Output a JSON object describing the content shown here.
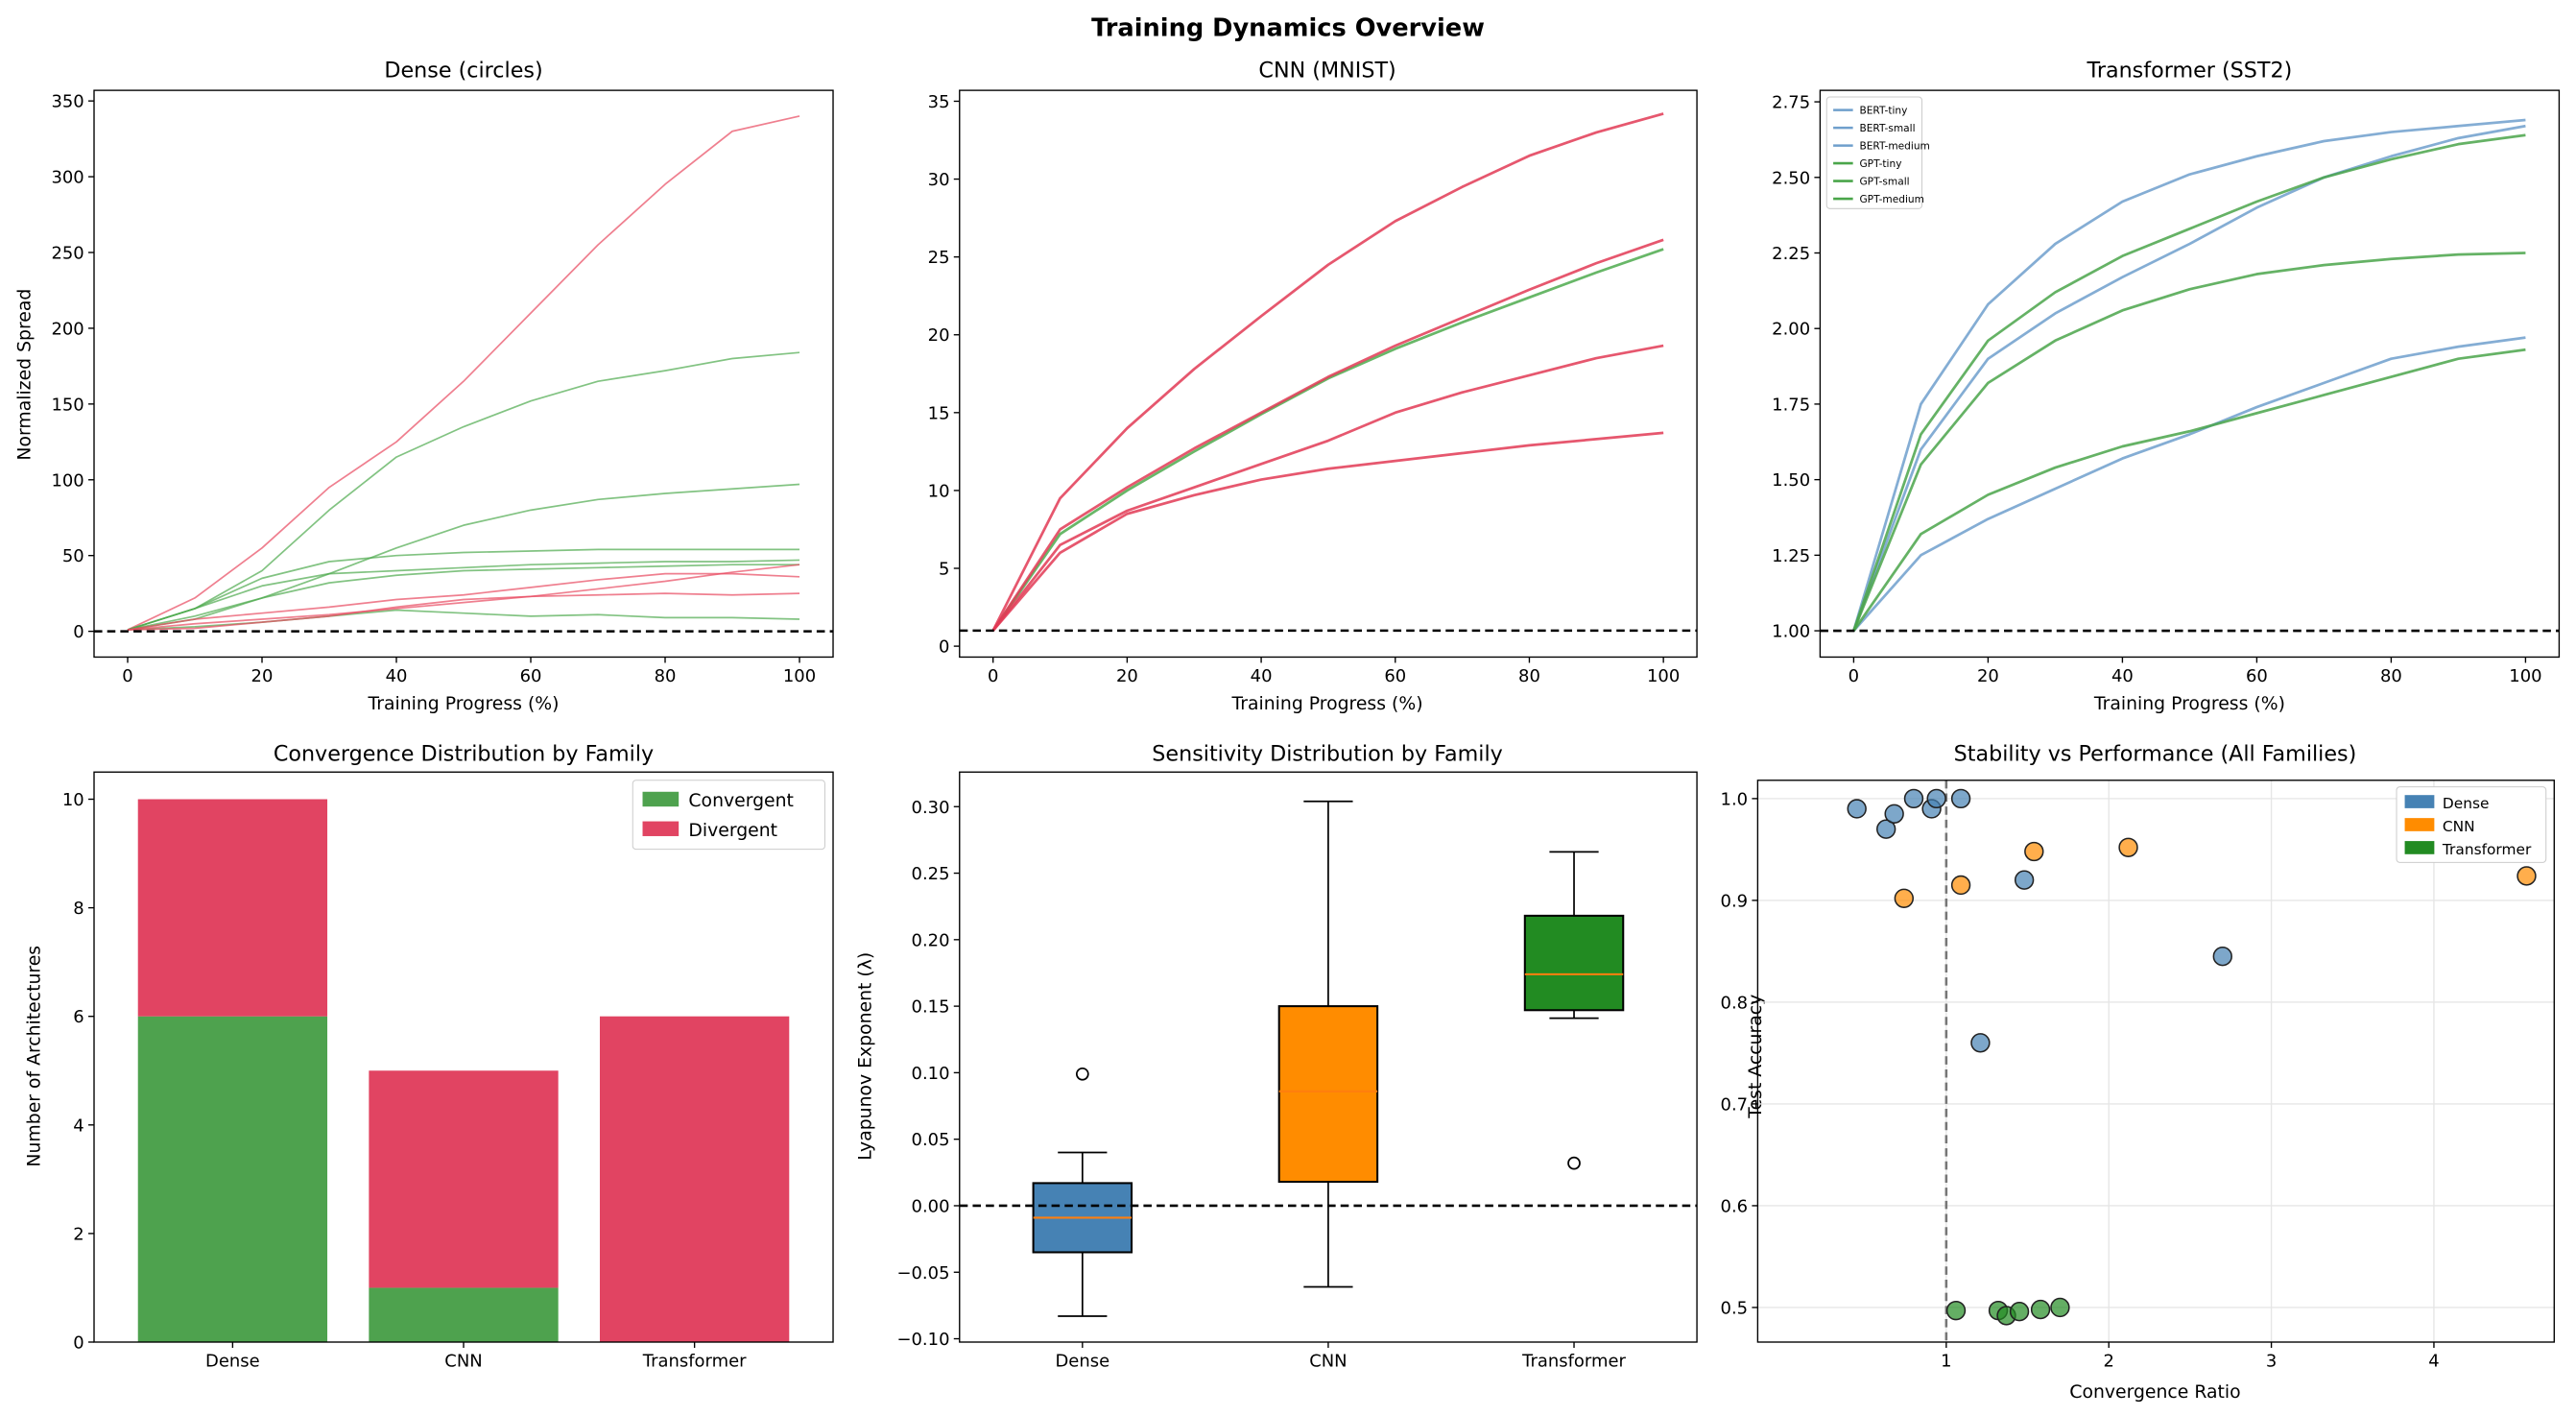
{
  "figure": {
    "title": "Training Dynamics Overview"
  },
  "chart_data": [
    {
      "type": "line",
      "title": "Dense (circles)",
      "xlabel": "Training Progress (%)",
      "ylabel": "Normalized Spread",
      "xlim": [
        -5,
        105
      ],
      "ylim": [
        -17,
        357
      ],
      "xticks": [
        0,
        20,
        40,
        60,
        80,
        100
      ],
      "xticklabels": [
        "0",
        "20",
        "40",
        "60",
        "80",
        "100"
      ],
      "yticks": [
        0,
        50,
        100,
        150,
        200,
        250,
        300,
        350
      ],
      "yticklabels": [
        "0",
        "50",
        "100",
        "150",
        "200",
        "250",
        "300",
        "350"
      ],
      "reference_line": {
        "y": 0,
        "style": "dashed",
        "color": "#000000"
      },
      "grid": false,
      "x": [
        0,
        10,
        20,
        30,
        40,
        50,
        60,
        70,
        80,
        90,
        100
      ],
      "series": [
        {
          "color": "#e8485f",
          "values": [
            1,
            22,
            55,
            95,
            125,
            165,
            210,
            255,
            295,
            330,
            340
          ]
        },
        {
          "color": "#4daa4d",
          "values": [
            1,
            15,
            40,
            80,
            115,
            135,
            152,
            165,
            172,
            180,
            184
          ]
        },
        {
          "color": "#4daa4d",
          "values": [
            1,
            8,
            22,
            38,
            55,
            70,
            80,
            87,
            91,
            94,
            97
          ]
        },
        {
          "color": "#4daa4d",
          "values": [
            1,
            15,
            35,
            46,
            50,
            52,
            53,
            54,
            54,
            54,
            54
          ]
        },
        {
          "color": "#4daa4d",
          "values": [
            1,
            15,
            30,
            38,
            40,
            42,
            44,
            45,
            46,
            46,
            47
          ]
        },
        {
          "color": "#4daa4d",
          "values": [
            1,
            10,
            22,
            32,
            37,
            40,
            41,
            42,
            43,
            44,
            44
          ]
        },
        {
          "color": "#4daa4d",
          "values": [
            1,
            3,
            6,
            10,
            14,
            12,
            10,
            11,
            9,
            9,
            8
          ]
        },
        {
          "color": "#e8485f",
          "values": [
            1,
            5,
            8,
            11,
            15,
            19,
            23,
            28,
            33,
            39,
            44
          ]
        },
        {
          "color": "#e8485f",
          "values": [
            1,
            8,
            12,
            16,
            21,
            24,
            29,
            34,
            38,
            38,
            36
          ]
        },
        {
          "color": "#e8485f",
          "values": [
            1,
            2,
            6,
            10,
            16,
            21,
            23,
            24,
            25,
            24,
            25
          ]
        }
      ]
    },
    {
      "type": "line",
      "title": "CNN (MNIST)",
      "xlabel": "Training Progress (%)",
      "ylabel": "",
      "xlim": [
        -5,
        105
      ],
      "ylim": [
        -0.7,
        35.7
      ],
      "xticks": [
        0,
        20,
        40,
        60,
        80,
        100
      ],
      "xticklabels": [
        "0",
        "20",
        "40",
        "60",
        "80",
        "100"
      ],
      "yticks": [
        0,
        5,
        10,
        15,
        20,
        25,
        30,
        35
      ],
      "yticklabels": [
        "0",
        "5",
        "10",
        "15",
        "20",
        "25",
        "30",
        "35"
      ],
      "reference_line": {
        "y": 1,
        "style": "dashed",
        "color": "#000000"
      },
      "grid": false,
      "x": [
        0,
        10,
        20,
        30,
        40,
        50,
        60,
        70,
        80,
        90,
        100
      ],
      "series": [
        {
          "color": "#4daa4d",
          "values": [
            1,
            7.2,
            10,
            12.5,
            14.9,
            17.2,
            19.1,
            20.8,
            22.4,
            24,
            25.5
          ]
        },
        {
          "color": "#e23a55",
          "values": [
            1,
            9.5,
            14,
            17.8,
            21.2,
            24.5,
            27.3,
            29.5,
            31.5,
            33,
            34.2
          ]
        },
        {
          "color": "#e23a55",
          "values": [
            1,
            7.5,
            10.2,
            12.7,
            15,
            17.3,
            19.3,
            21.1,
            22.9,
            24.6,
            26.1
          ]
        },
        {
          "color": "#e23a55",
          "values": [
            1,
            6.5,
            8.7,
            10.2,
            11.7,
            13.2,
            15,
            16.3,
            17.4,
            18.5,
            19.3
          ]
        },
        {
          "color": "#e23a55",
          "values": [
            1,
            6,
            8.5,
            9.7,
            10.7,
            11.4,
            11.9,
            12.4,
            12.9,
            13.3,
            13.7
          ]
        }
      ]
    },
    {
      "type": "line",
      "title": "Transformer (SST2)",
      "xlabel": "Training Progress (%)",
      "ylabel": "",
      "xlim": [
        -5,
        105
      ],
      "ylim": [
        0.913,
        2.788
      ],
      "xticks": [
        0,
        20,
        40,
        60,
        80,
        100
      ],
      "xticklabels": [
        "0",
        "20",
        "40",
        "60",
        "80",
        "100"
      ],
      "yticks": [
        1,
        1.25,
        1.5,
        1.75,
        2,
        2.25,
        2.5,
        2.75
      ],
      "yticklabels": [
        "1.00",
        "1.25",
        "1.50",
        "1.75",
        "2.00",
        "2.25",
        "2.50",
        "2.75"
      ],
      "reference_line": {
        "y": 1,
        "style": "dashed",
        "color": "#000000"
      },
      "grid": false,
      "legend": "top-left",
      "x": [
        0,
        10,
        20,
        30,
        40,
        50,
        60,
        70,
        80,
        90,
        100
      ],
      "series": [
        {
          "name": "BERT-tiny",
          "color": "#6f9fcc",
          "values": [
            1,
            1.75,
            2.08,
            2.28,
            2.42,
            2.51,
            2.57,
            2.62,
            2.65,
            2.67,
            2.69
          ]
        },
        {
          "name": "BERT-small",
          "color": "#6f9fcc",
          "values": [
            1,
            1.6,
            1.9,
            2.05,
            2.17,
            2.28,
            2.4,
            2.5,
            2.57,
            2.63,
            2.67
          ]
        },
        {
          "name": "BERT-medium",
          "color": "#6f9fcc",
          "values": [
            1,
            1.25,
            1.37,
            1.47,
            1.57,
            1.65,
            1.74,
            1.82,
            1.9,
            1.94,
            1.97
          ]
        },
        {
          "name": "GPT-tiny",
          "color": "#4aa54a",
          "values": [
            1,
            1.65,
            1.96,
            2.12,
            2.24,
            2.33,
            2.42,
            2.5,
            2.56,
            2.61,
            2.64
          ]
        },
        {
          "name": "GPT-small",
          "color": "#4aa54a",
          "values": [
            1,
            1.55,
            1.82,
            1.96,
            2.06,
            2.13,
            2.18,
            2.21,
            2.23,
            2.245,
            2.25
          ]
        },
        {
          "name": "GPT-medium",
          "color": "#4aa54a",
          "values": [
            1,
            1.32,
            1.45,
            1.54,
            1.61,
            1.66,
            1.72,
            1.78,
            1.84,
            1.9,
            1.93
          ]
        }
      ]
    },
    {
      "type": "bar",
      "stacked": true,
      "title": "Convergence Distribution by Family",
      "xlabel": "",
      "ylabel": "Number of Architectures",
      "categories": [
        "Dense",
        "CNN",
        "Transformer"
      ],
      "ylim": [
        0,
        10.5
      ],
      "yticks": [
        0,
        2,
        4,
        6,
        8,
        10
      ],
      "yticklabels": [
        "0",
        "2",
        "4",
        "6",
        "8",
        "10"
      ],
      "legend": "top-right",
      "series": [
        {
          "name": "Convergent",
          "color": "#4ea24e",
          "values": [
            6,
            1,
            0
          ]
        },
        {
          "name": "Divergent",
          "color": "#e14462",
          "values": [
            4,
            4,
            6
          ]
        }
      ]
    },
    {
      "type": "box",
      "title": "Sensitivity Distribution by Family",
      "xlabel": "",
      "ylabel": "Lyapunov Exponent (λ)",
      "categories": [
        "Dense",
        "CNN",
        "Transformer"
      ],
      "ylim": [
        -0.1025,
        0.326
      ],
      "yticks": [
        -0.1,
        -0.05,
        0,
        0.05,
        0.1,
        0.15,
        0.2,
        0.25,
        0.3
      ],
      "yticklabels": [
        "−0.10",
        "−0.05",
        "0.00",
        "0.05",
        "0.10",
        "0.15",
        "0.20",
        "0.25",
        "0.30"
      ],
      "reference_line": {
        "y": 0,
        "style": "dashed",
        "color": "#000000"
      },
      "median_color": "#ff7f0e",
      "boxes": [
        {
          "color": "#4682b4",
          "whisker_low": -0.083,
          "q1": -0.035,
          "median": -0.009,
          "q3": 0.017,
          "whisker_high": 0.04,
          "outliers": [
            0.099
          ]
        },
        {
          "color": "#ff8c00",
          "whisker_low": -0.061,
          "q1": 0.018,
          "median": 0.086,
          "q3": 0.15,
          "whisker_high": 0.304,
          "outliers": []
        },
        {
          "color": "#228b22",
          "whisker_low": 0.141,
          "q1": 0.147,
          "median": 0.174,
          "q3": 0.218,
          "whisker_high": 0.266,
          "outliers": [
            0.032
          ]
        }
      ]
    },
    {
      "type": "scatter",
      "title": "Stability vs Performance (All Families)",
      "xlabel": "Convergence Ratio",
      "ylabel": "Test Accuracy",
      "xlim": [
        -0.16,
        4.74
      ],
      "ylim": [
        0.466,
        1.018
      ],
      "xticks": [
        1,
        2,
        3,
        4
      ],
      "xticklabels": [
        "1",
        "2",
        "3",
        "4"
      ],
      "yticks": [
        0.5,
        0.6,
        0.7,
        0.8,
        0.9,
        1.0
      ],
      "yticklabels": [
        "0.5",
        "0.6",
        "0.7",
        "0.8",
        "0.9",
        "1.0"
      ],
      "grid": true,
      "reference_line": {
        "x": 1,
        "style": "dashed",
        "color": "#777777"
      },
      "legend": "top-right",
      "series": [
        {
          "name": "Dense",
          "color": "#4682b4",
          "points": [
            [
              0.45,
              0.99
            ],
            [
              0.63,
              0.97
            ],
            [
              0.68,
              0.985
            ],
            [
              0.8,
              1.0
            ],
            [
              0.91,
              0.99
            ],
            [
              0.94,
              1.0
            ],
            [
              1.09,
              1.0
            ],
            [
              1.48,
              0.92
            ],
            [
              2.7,
              0.845
            ],
            [
              1.21,
              0.76
            ]
          ]
        },
        {
          "name": "CNN",
          "color": "#ff8c00",
          "points": [
            [
              0.74,
              0.902
            ],
            [
              1.09,
              0.915
            ],
            [
              1.54,
              0.948
            ],
            [
              2.12,
              0.952
            ],
            [
              4.57,
              0.924
            ]
          ]
        },
        {
          "name": "Transformer",
          "color": "#228b22",
          "points": [
            [
              1.06,
              0.497
            ],
            [
              1.32,
              0.497
            ],
            [
              1.37,
              0.492
            ],
            [
              1.45,
              0.496
            ],
            [
              1.58,
              0.498
            ],
            [
              1.7,
              0.5
            ]
          ]
        }
      ]
    }
  ]
}
